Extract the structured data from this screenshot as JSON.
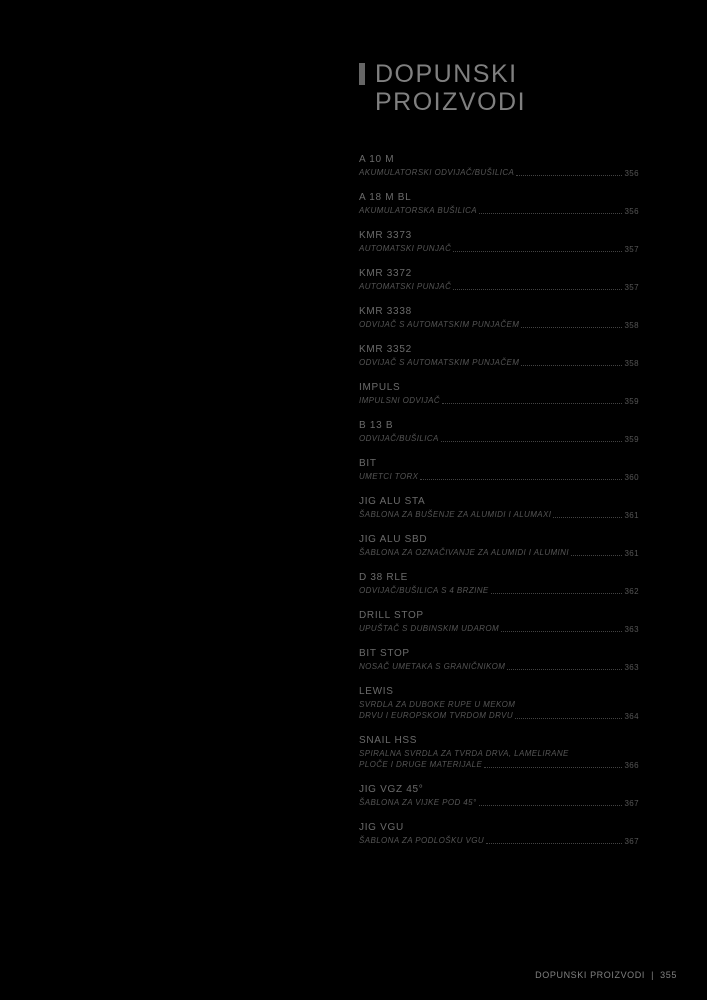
{
  "heading": {
    "line1": "DOPUNSKI",
    "line2": "PROIZVODI"
  },
  "entries": [
    {
      "title": "A 10 M",
      "desc": "AKUMULATORSKI ODVIJAČ/BUŠILICA",
      "page": "356"
    },
    {
      "title": "A 18 M BL",
      "desc": "AKUMULATORSKA BUŠILICA",
      "page": "356"
    },
    {
      "title": "KMR 3373",
      "desc": "AUTOMATSKI PUNJAČ",
      "page": "357"
    },
    {
      "title": "KMR 3372",
      "desc": "AUTOMATSKI PUNJAČ",
      "page": "357"
    },
    {
      "title": "KMR 3338",
      "desc": "ODVIJAČ S AUTOMATSKIM PUNJAČEM",
      "page": "358"
    },
    {
      "title": "KMR 3352",
      "desc": "ODVIJAČ S AUTOMATSKIM PUNJAČEM",
      "page": "358"
    },
    {
      "title": "IMPULS",
      "desc": "IMPULSNI ODVIJAČ",
      "page": "359"
    },
    {
      "title": "B 13 B",
      "desc": "ODVIJAČ/BUŠILICA",
      "page": "359"
    },
    {
      "title": "BIT",
      "desc": "UMETCI TORX",
      "page": "360"
    },
    {
      "title": "JIG ALU STA",
      "desc": "ŠABLONA ZA BUŠENJE ZA ALUMIDI I ALUMAXI",
      "page": "361"
    },
    {
      "title": "JIG ALU SBD",
      "desc": "ŠABLONA ZA OZNAČIVANJE ZA ALUMIDI I ALUMINI",
      "page": "361"
    },
    {
      "title": "D 38 RLE",
      "desc": "ODVIJAČ/BUŠILICA S 4 BRZINE",
      "page": "362"
    },
    {
      "title": "DRILL STOP",
      "desc": "UPUŠTAČ S DUBINSKIM UDAROM",
      "page": "363"
    },
    {
      "title": "BIT STOP",
      "desc": "NOSAČ UMETAKA S GRANIČNIKOM",
      "page": "363"
    },
    {
      "title": "LEWIS",
      "desc": "SVRDLA ZA DUBOKE RUPE U MEKOM\nDRVU I EUROPSKOM TVRDOM DRVU",
      "page": "364"
    },
    {
      "title": "SNAIL HSS",
      "desc": "SPIRALNA SVRDLA ZA TVRDA DRVA, LAMELIRANE\nPLOČE I DRUGE MATERIJALE",
      "page": "366"
    },
    {
      "title": "JIG VGZ 45°",
      "desc": "ŠABLONA ZA VIJKE POD 45°",
      "page": "367"
    },
    {
      "title": "JIG VGU",
      "desc": "ŠABLONA ZA PODLOŠKU VGU",
      "page": "367"
    }
  ],
  "footer": {
    "label": "DOPUNSKI PROIZVODI",
    "page": "355"
  },
  "colors": {
    "background": "#000000",
    "heading": "#808080",
    "title": "#6b6b6b",
    "desc": "#555555",
    "accent": "#666666"
  }
}
